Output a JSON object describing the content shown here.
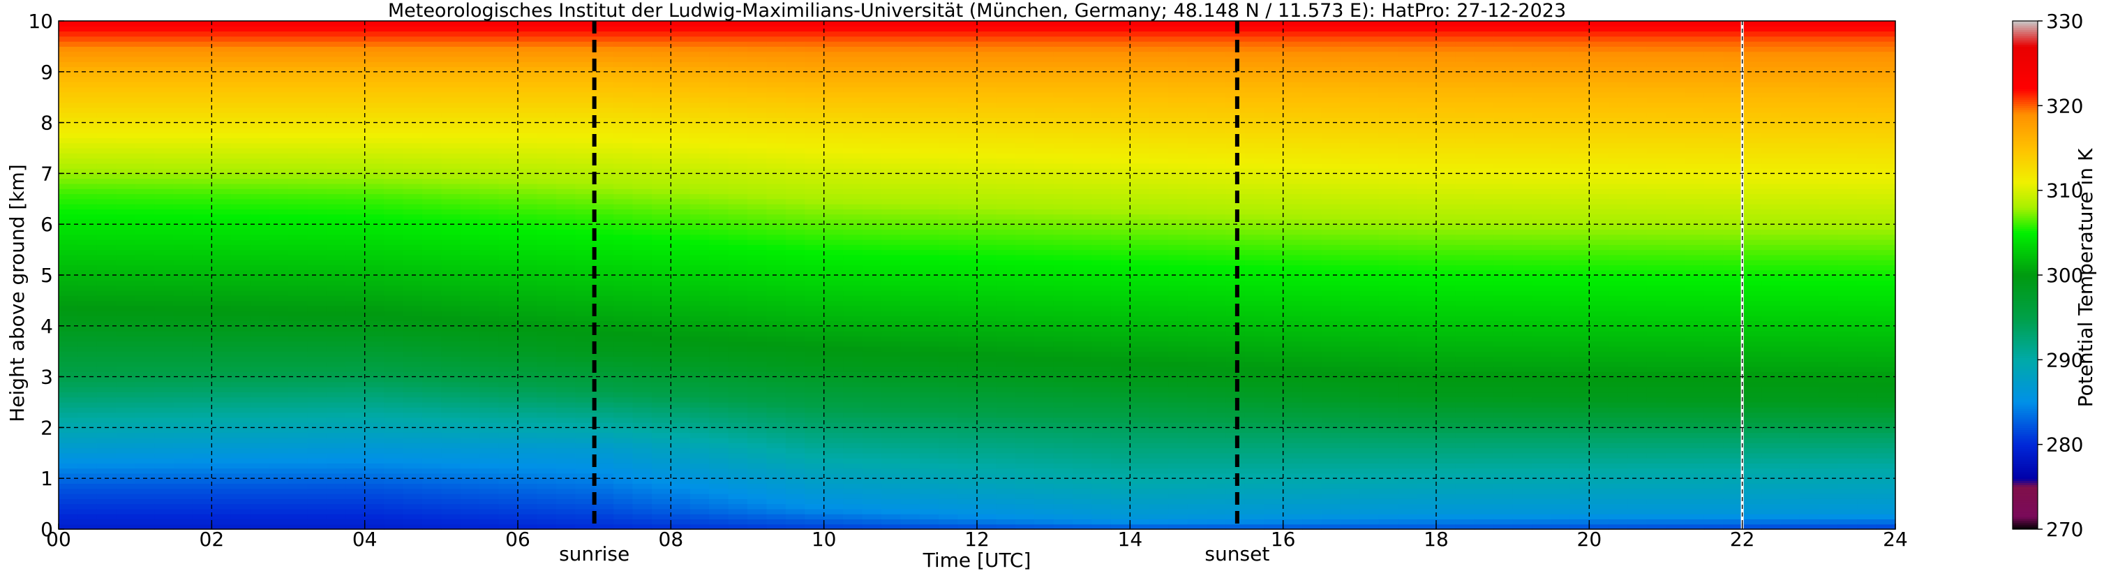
{
  "chart_data": {
    "type": "heatmap",
    "title": "Meteorologisches Institut der Ludwig-Maximilians-Universität (München, Germany; 48.148 N / 11.573 E):    HatPro: 27-12-2023",
    "xlabel": "Time [UTC]",
    "ylabel": "Height above ground [km]",
    "colorbar_label": "Potential Temperature in K",
    "x_range": [
      0,
      24
    ],
    "y_range": [
      0,
      10
    ],
    "x_ticks": [
      "00",
      "02",
      "04",
      "06",
      "08",
      "10",
      "12",
      "14",
      "16",
      "18",
      "20",
      "22",
      "24"
    ],
    "y_ticks": [
      "0",
      "1",
      "2",
      "3",
      "4",
      "5",
      "6",
      "7",
      "8",
      "9",
      "10"
    ],
    "colorbar_range": [
      270,
      330
    ],
    "colorbar_ticks": [
      "270",
      "280",
      "290",
      "300",
      "310",
      "320",
      "330"
    ],
    "grid": true,
    "events": [
      {
        "label": "sunrise",
        "time": 7.0
      },
      {
        "label": "sunset",
        "time": 15.4
      }
    ],
    "data_gap_time": 22.0,
    "profiles": [
      {
        "time": 0,
        "levels": [
          {
            "h": 0,
            "theta": 279
          },
          {
            "h": 0.8,
            "theta": 282
          },
          {
            "h": 1.6,
            "theta": 287
          },
          {
            "h": 2.8,
            "theta": 294
          },
          {
            "h": 4.0,
            "theta": 299
          },
          {
            "h": 6.6,
            "theta": 306
          },
          {
            "h": 8.0,
            "theta": 312
          },
          {
            "h": 9.0,
            "theta": 316
          },
          {
            "h": 9.6,
            "theta": 320
          },
          {
            "h": 10.0,
            "theta": 323
          }
        ]
      },
      {
        "time": 4,
        "levels": [
          {
            "h": 0,
            "theta": 279
          },
          {
            "h": 0.8,
            "theta": 282
          },
          {
            "h": 1.7,
            "theta": 287
          },
          {
            "h": 2.9,
            "theta": 294
          },
          {
            "h": 3.9,
            "theta": 299
          },
          {
            "h": 6.5,
            "theta": 306
          },
          {
            "h": 8.0,
            "theta": 312
          },
          {
            "h": 9.0,
            "theta": 316
          },
          {
            "h": 9.6,
            "theta": 320
          },
          {
            "h": 10.0,
            "theta": 323
          }
        ]
      },
      {
        "time": 7,
        "levels": [
          {
            "h": 0,
            "theta": 280
          },
          {
            "h": 0.7,
            "theta": 283
          },
          {
            "h": 1.6,
            "theta": 287
          },
          {
            "h": 2.6,
            "theta": 294
          },
          {
            "h": 3.5,
            "theta": 299
          },
          {
            "h": 6.2,
            "theta": 306
          },
          {
            "h": 8.0,
            "theta": 312
          },
          {
            "h": 9.0,
            "theta": 316
          },
          {
            "h": 9.6,
            "theta": 320
          },
          {
            "h": 10.0,
            "theta": 323
          }
        ]
      },
      {
        "time": 10,
        "levels": [
          {
            "h": 0,
            "theta": 281
          },
          {
            "h": 0.4,
            "theta": 285
          },
          {
            "h": 1.2,
            "theta": 289
          },
          {
            "h": 2.2,
            "theta": 294
          },
          {
            "h": 3.2,
            "theta": 299
          },
          {
            "h": 5.8,
            "theta": 306
          },
          {
            "h": 7.8,
            "theta": 312
          },
          {
            "h": 8.8,
            "theta": 316
          },
          {
            "h": 9.6,
            "theta": 320
          },
          {
            "h": 10.0,
            "theta": 323
          }
        ]
      },
      {
        "time": 14,
        "levels": [
          {
            "h": 0,
            "theta": 282
          },
          {
            "h": 0.2,
            "theta": 286
          },
          {
            "h": 1.0,
            "theta": 290
          },
          {
            "h": 2.0,
            "theta": 294
          },
          {
            "h": 2.9,
            "theta": 299
          },
          {
            "h": 5.6,
            "theta": 306
          },
          {
            "h": 7.6,
            "theta": 312
          },
          {
            "h": 8.8,
            "theta": 316
          },
          {
            "h": 9.6,
            "theta": 320
          },
          {
            "h": 10.0,
            "theta": 323
          }
        ]
      },
      {
        "time": 18,
        "levels": [
          {
            "h": 0,
            "theta": 282
          },
          {
            "h": 0.3,
            "theta": 286
          },
          {
            "h": 1.1,
            "theta": 290
          },
          {
            "h": 1.9,
            "theta": 294
          },
          {
            "h": 2.6,
            "theta": 299
          },
          {
            "h": 5.4,
            "theta": 306
          },
          {
            "h": 7.4,
            "theta": 312
          },
          {
            "h": 8.7,
            "theta": 316
          },
          {
            "h": 9.6,
            "theta": 320
          },
          {
            "h": 10.0,
            "theta": 323
          }
        ]
      },
      {
        "time": 24,
        "levels": [
          {
            "h": 0,
            "theta": 281
          },
          {
            "h": 0.3,
            "theta": 286
          },
          {
            "h": 1.2,
            "theta": 290
          },
          {
            "h": 1.9,
            "theta": 294
          },
          {
            "h": 2.5,
            "theta": 299
          },
          {
            "h": 5.3,
            "theta": 306
          },
          {
            "h": 7.3,
            "theta": 312
          },
          {
            "h": 8.6,
            "theta": 316
          },
          {
            "h": 9.6,
            "theta": 320
          },
          {
            "h": 10.0,
            "theta": 323
          }
        ]
      }
    ],
    "colormap": [
      {
        "theta": 270,
        "color": "#000000"
      },
      {
        "theta": 271.5,
        "color": "#7a0a5a"
      },
      {
        "theta": 275,
        "color": "#80104a"
      },
      {
        "theta": 276,
        "color": "#0000a8"
      },
      {
        "theta": 280,
        "color": "#0028d8"
      },
      {
        "theta": 285,
        "color": "#0090e8"
      },
      {
        "theta": 290,
        "color": "#00aaa8"
      },
      {
        "theta": 295,
        "color": "#00a048"
      },
      {
        "theta": 300,
        "color": "#009a10"
      },
      {
        "theta": 305,
        "color": "#00f000"
      },
      {
        "theta": 308,
        "color": "#a8f000"
      },
      {
        "theta": 311,
        "color": "#f0f000"
      },
      {
        "theta": 315,
        "color": "#ffc000"
      },
      {
        "theta": 319,
        "color": "#ff9000"
      },
      {
        "theta": 322,
        "color": "#ff0000"
      },
      {
        "theta": 327,
        "color": "#e80000"
      },
      {
        "theta": 330,
        "color": "#c8c8c8"
      }
    ]
  }
}
